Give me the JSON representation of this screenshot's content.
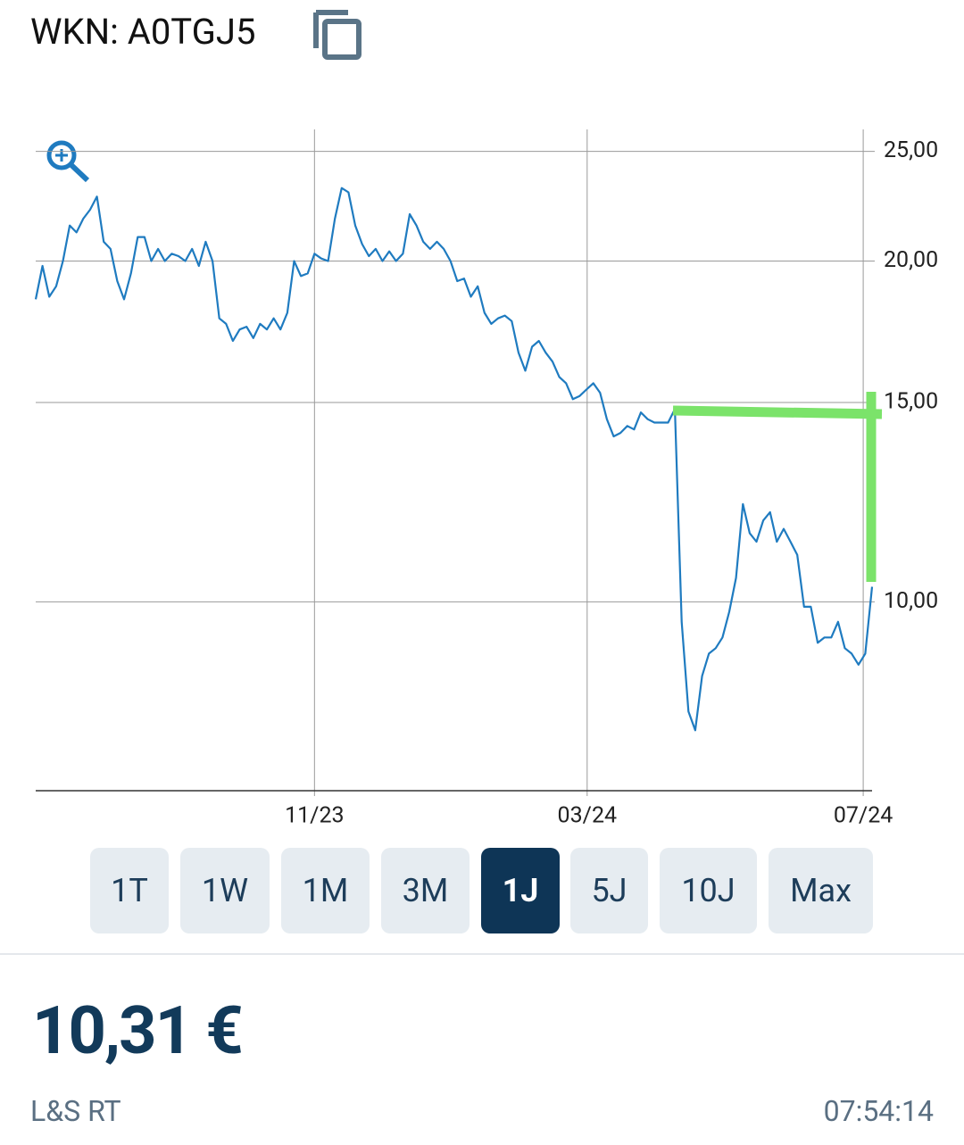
{
  "header": {
    "wkn": "WKN: A0TGJ5"
  },
  "chart_data": {
    "type": "line",
    "log_scale": true,
    "grid": true,
    "xlim": [
      0,
      123
    ],
    "xticks": [
      {
        "value": 41,
        "label": "11/23"
      },
      {
        "value": 81.1,
        "label": "03/24"
      },
      {
        "value": 121.7,
        "label": "07/24"
      }
    ],
    "ylim": [
      6.81,
      26.14
    ],
    "yticks": [
      {
        "value": 25,
        "label": "25,00"
      },
      {
        "value": 20,
        "label": "20,00"
      },
      {
        "value": 15,
        "label": "15,00"
      },
      {
        "value": 10,
        "label": "10,00"
      }
    ],
    "series": [
      {
        "color": "#1f7bc0",
        "values": [
          18.5,
          19.8,
          18.6,
          19.0,
          20.0,
          21.5,
          21.2,
          21.8,
          22.2,
          22.8,
          20.8,
          20.5,
          19.2,
          18.5,
          19.5,
          21.0,
          21.0,
          20.0,
          20.5,
          20.0,
          20.3,
          20.2,
          20.0,
          20.5,
          19.8,
          20.8,
          20.0,
          17.8,
          17.6,
          17.0,
          17.4,
          17.5,
          17.1,
          17.6,
          17.4,
          17.8,
          17.4,
          18.0,
          20.0,
          19.4,
          19.5,
          20.3,
          20.1,
          20.0,
          21.8,
          23.2,
          23.0,
          21.5,
          20.7,
          20.2,
          20.5,
          20.0,
          20.4,
          20.0,
          20.3,
          22.0,
          21.5,
          20.8,
          20.5,
          20.8,
          20.5,
          20.0,
          19.2,
          19.3,
          18.6,
          19.0,
          18.0,
          17.6,
          17.8,
          17.9,
          17.7,
          16.6,
          16.0,
          16.8,
          17.0,
          16.6,
          16.3,
          15.8,
          15.6,
          15.1,
          15.2,
          15.4,
          15.6,
          15.3,
          14.5,
          14.0,
          14.1,
          14.3,
          14.2,
          14.7,
          14.5,
          14.4,
          14.4,
          14.4,
          14.8,
          9.6,
          8.0,
          7.7,
          8.6,
          9.0,
          9.1,
          9.3,
          9.8,
          10.5,
          12.2,
          11.5,
          11.3,
          11.8,
          12.0,
          11.3,
          11.6,
          11.3,
          11.0,
          9.9,
          9.9,
          9.2,
          9.3,
          9.3,
          9.6,
          9.1,
          9.0,
          8.8,
          9.0,
          10.31
        ]
      }
    ]
  },
  "range_buttons": {
    "items": [
      "1T",
      "1W",
      "1M",
      "3M",
      "1J",
      "5J",
      "10J",
      "Max"
    ],
    "active": 4
  },
  "quote": {
    "price": "10,31 €",
    "exchange": "L&S RT",
    "time": "07:54:14"
  }
}
